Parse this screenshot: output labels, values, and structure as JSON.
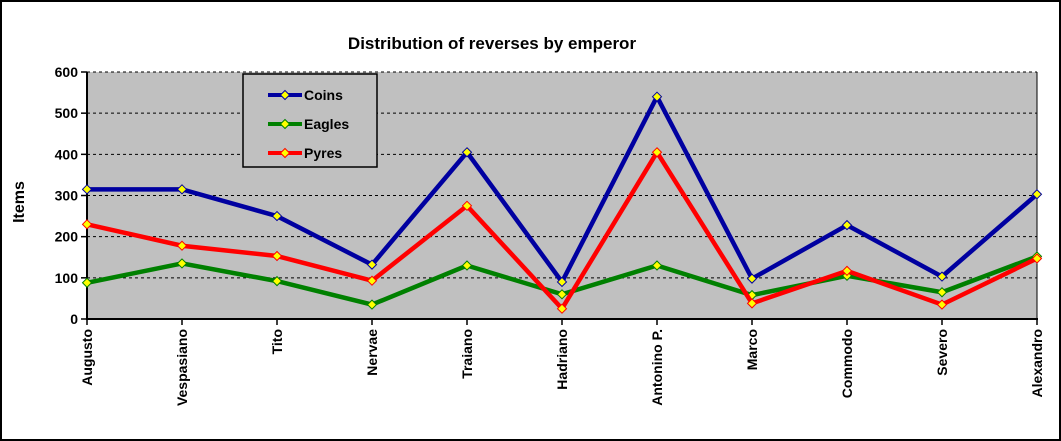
{
  "window": {
    "background": "#FFFFFF",
    "frame_border_color": "#000000"
  },
  "chart_data": {
    "type": "line",
    "title": "Distribution  of reverses by emperor",
    "xlabel": "",
    "ylabel": "Items",
    "categories": [
      "Augusto",
      "Vespasiano",
      "Tito",
      "Nervae",
      "Traiano",
      "Hadriano",
      "Antonino P.",
      "Marco",
      "Commodo",
      "Severo",
      "Alexandro"
    ],
    "series": [
      {
        "name": "Coins",
        "color": "#0000A0",
        "values": [
          315,
          315,
          250,
          132,
          405,
          90,
          540,
          98,
          228,
          103,
          303
        ]
      },
      {
        "name": "Eagles",
        "color": "#008000",
        "values": [
          88,
          135,
          92,
          35,
          130,
          60,
          130,
          58,
          105,
          65,
          152
        ]
      },
      {
        "name": "Pyres",
        "color": "#FF0000",
        "values": [
          230,
          178,
          153,
          93,
          275,
          25,
          405,
          38,
          117,
          35,
          147
        ]
      }
    ],
    "marker": {
      "shape": "diamond",
      "fill": "#FFFF00"
    },
    "ylim": [
      0,
      600
    ],
    "yticks": [
      0,
      100,
      200,
      300,
      400,
      500,
      600
    ],
    "grid": "horizontal-dashed",
    "plot_bg": "#C0C0C0",
    "gridline_color": "#000000",
    "axis_color": "#000000",
    "legend_position": "inside-upper-left",
    "legend_bg": "#C0C0C0",
    "legend_border": "#000000",
    "x_label_rotation_deg": -90
  }
}
